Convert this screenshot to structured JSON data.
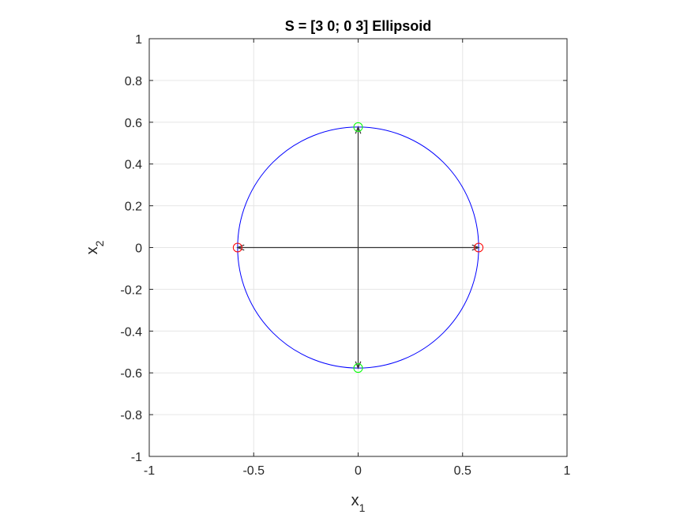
{
  "chart_data": {
    "type": "line",
    "title": "S = [3 0; 0 3] Ellipsoid",
    "xlabel": {
      "base": "x",
      "sub": "1"
    },
    "ylabel": {
      "base": "x",
      "sub": "2"
    },
    "xlim": [
      -1,
      1
    ],
    "ylim": [
      -1,
      1
    ],
    "xticks": [
      -1,
      -0.5,
      0,
      0.5,
      1
    ],
    "xtick_labels": [
      "-1",
      "-0.5",
      "0",
      "0.5",
      "1"
    ],
    "yticks": [
      -1,
      -0.8,
      -0.6,
      -0.4,
      -0.2,
      0,
      0.2,
      0.4,
      0.6,
      0.8,
      1
    ],
    "ytick_labels": [
      "-1",
      "-0.8",
      "-0.6",
      "-0.4",
      "-0.2",
      "0",
      "0.2",
      "0.4",
      "0.6",
      "0.8",
      "1"
    ],
    "grid": true,
    "ellipse": {
      "center": [
        0,
        0
      ],
      "rx": 0.577,
      "ry": 0.577,
      "color": "#0000ff"
    },
    "arrows": [
      {
        "from": [
          0,
          0
        ],
        "to": [
          0.577,
          0
        ]
      },
      {
        "from": [
          0,
          0
        ],
        "to": [
          -0.577,
          0
        ]
      },
      {
        "from": [
          0,
          0
        ],
        "to": [
          0,
          0.577
        ]
      },
      {
        "from": [
          0,
          0
        ],
        "to": [
          0,
          -0.577
        ]
      }
    ],
    "arrow_color": "#333333",
    "markers": [
      {
        "x": 0.577,
        "y": 0,
        "color": "#ff0000"
      },
      {
        "x": -0.577,
        "y": 0,
        "color": "#ff0000"
      },
      {
        "x": 0,
        "y": 0.577,
        "color": "#00ff00"
      },
      {
        "x": 0,
        "y": -0.577,
        "color": "#00ff00"
      }
    ]
  }
}
